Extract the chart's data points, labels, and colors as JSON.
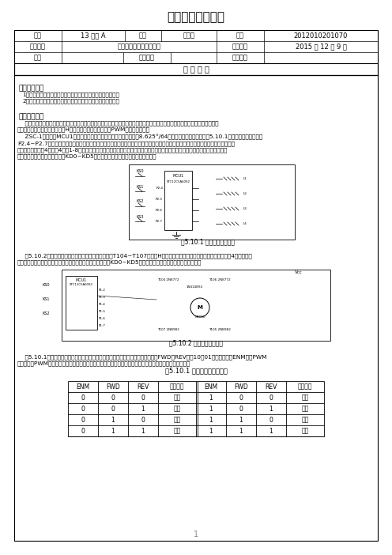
{
  "title": "微处理器实验报告",
  "row1_cells": [
    {
      "label": "班级",
      "value": "13 电科 A"
    },
    {
      "label": "姓名",
      "value": "张益航"
    },
    {
      "label": "学号",
      "value": "2012010201070"
    }
  ],
  "row2_cells": [
    {
      "label": "实验名称",
      "value": "步进电机和直流电机控制"
    },
    {
      "label": "实验时间",
      "value": "2015 年 12 月 9 日"
    }
  ],
  "row3_cells": [
    {
      "label": "成绩",
      "value": ""
    },
    {
      "label": "教师签名",
      "value": ""
    },
    {
      "label": "批改时间",
      "value": ""
    }
  ],
  "report_title": "报 告 内 容",
  "sec1_title": "一、实验目的",
  "sec1_items": [
    "1、掌握步进电机工作原理、单片机接口电路及程序控制方法。",
    "2、掌握直流电机工作原理、单片机接口电路及程序控制方法。"
  ],
  "sec2_title": "二、实验原理",
  "para1_lines": [
    "    步进电机和直流电机是机电一体化系统中常用的两种电动执行设备。步进电机可在电脉冲信号的控制下，实现快速启停以及精确",
    "的角位移控制。直流电机可通过H桥电路切换转向，并可利用PWM技术进行调速。"
  ],
  "para2_lines": [
    "    ZSC-1实验箱为MCU1配置了一个四相步进电机（其最小步距角为8.625°/64）和一个减速直流电机。图5.10.1为步进电机实验电路，",
    "P2.4~P2.7某根口线输出低电平时，相应的功率三极管导通，其所连接的一相线圈通电，口线输出高电平时线圈断电。程序以一定的时",
    "间间隔依次输出单4拍、双4拍或1-8拍方式对应的相序字，便可控制步进电机转动，颠倒相序字顺序，或改变时间间隔，步进电机的转",
    "向和转速也随之改变。图中按键KD0~KD5可用于步进电机转向、转速的控制输入。"
  ],
  "fig1_cap": "图5.10.1 步进电机实验电路",
  "para3_lines": [
    "    图5.10.2为直流电机实验电路，其核心为功率三极管T104~T107组成的H型全桥驱动电路。在单片机控制信号作用下，4个功率管呈",
    "现多种不同的通断组合，使电机处于相应工作状态。图中按键KD0~KD5可用于直流电机转向、转速的控制输入。"
  ],
  "fig2_cap": "图5.10.2 直流电机实验电路",
  "para4_lines": [
    "    表5.10.1为不同控制信号组合对应的直流电机状态。进行调速控制时，单片机先将FWD、REV置为10或01组合，再通过ENM输出PWM",
    "信号，利用PWM信号的不同占空比来调节电机绕组的平均电压，以直流调压电机调速的方式控制电机的转速。"
  ],
  "table_cap": "表5.10.1 直流电机控制功能表",
  "table_headers": [
    "ENM",
    "FWD",
    "REV",
    "电机状态",
    "ENM",
    "FWD",
    "REV",
    "电机状态"
  ],
  "table_rows": [
    [
      "0",
      "0",
      "0",
      "停动",
      "1",
      "0",
      "0",
      "停动"
    ],
    [
      "0",
      "0",
      "1",
      "停行",
      "1",
      "0",
      "1",
      "反转"
    ],
    [
      "0",
      "1",
      "0",
      "停行",
      "1",
      "1",
      "0",
      "正转"
    ],
    [
      "0",
      "1",
      "1",
      "停动",
      "1",
      "1",
      "1",
      "制动"
    ]
  ],
  "page_num": "1",
  "bg": "#ffffff",
  "black": "#000000",
  "gray_light": "#f5f5f5"
}
